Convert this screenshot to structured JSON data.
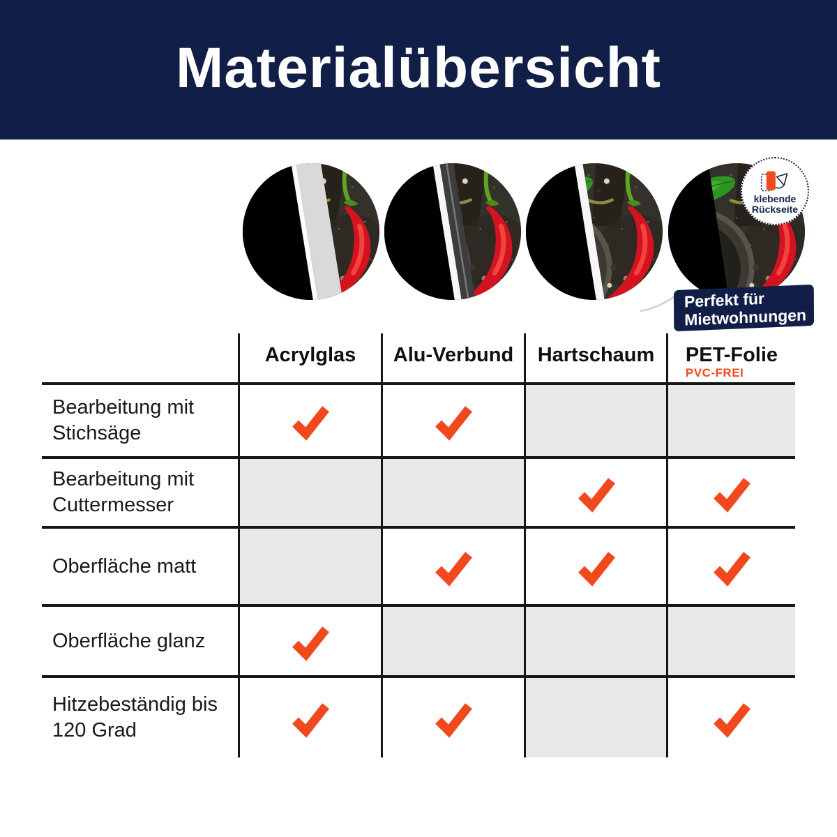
{
  "header": {
    "title": "Materialübersicht"
  },
  "hero": {
    "adhesive_badge": {
      "icon": "peel-sticker-icon",
      "line1": "klebende",
      "line2": "Rückseite"
    },
    "rental_banner": {
      "line1": "Perfekt für",
      "line2": "Mietwohnungen"
    }
  },
  "table": {
    "columns": [
      {
        "label": "Acrylglas",
        "sublabel": ""
      },
      {
        "label": "Alu-Verbund",
        "sublabel": ""
      },
      {
        "label": "Hartschaum",
        "sublabel": ""
      },
      {
        "label": "PET-Folie",
        "sublabel": "PVC-FREI"
      }
    ],
    "rows": [
      {
        "label": "Bearbeitung mit Stichsäge",
        "values": [
          "check",
          "check",
          "none",
          "none"
        ]
      },
      {
        "label": "Bearbeitung mit Cuttermesser",
        "values": [
          "none",
          "none",
          "check",
          "check"
        ]
      },
      {
        "label": "Oberfläche matt",
        "values": [
          "none",
          "check",
          "check",
          "check"
        ]
      },
      {
        "label": "Oberfläche glanz",
        "values": [
          "check",
          "none",
          "none",
          "none"
        ]
      },
      {
        "label": "Hitzebeständig bis 120 Grad",
        "values": [
          "check",
          "check",
          "none",
          "check"
        ]
      }
    ]
  },
  "icons": {
    "cell_check": "check-icon",
    "badge": "peel-sticker-icon"
  },
  "colors": {
    "header_bg": "#111f48",
    "accent_orange": "#f1491d",
    "na_cell": "#e8e8e8",
    "grid_line": "#161616"
  }
}
